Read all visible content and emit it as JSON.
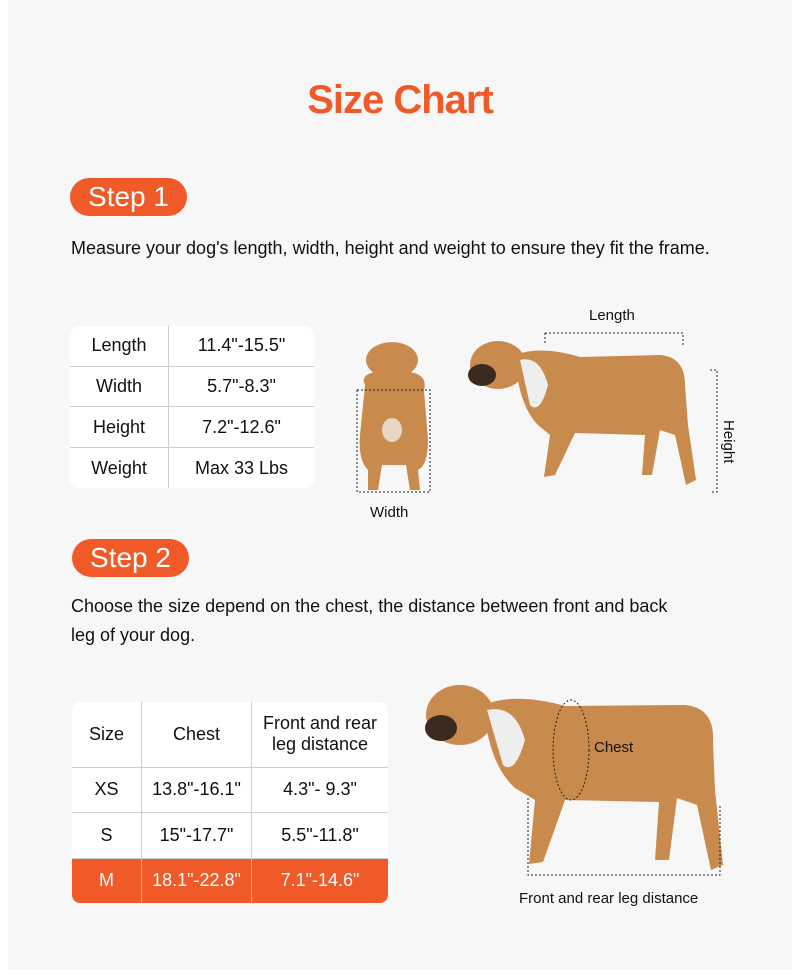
{
  "title": "Size Chart",
  "colors": {
    "accent": "#f05a28",
    "background": "#f7f7f7",
    "dog": "#c98a4e"
  },
  "step1": {
    "badge": "Step 1",
    "instruction": "Measure your dog's length, width, height and weight to ensure they fit the frame.",
    "table": [
      [
        "Length",
        "11.4\"-15.5\""
      ],
      [
        "Width",
        "5.7\"-8.3\""
      ],
      [
        "Height",
        "7.2\"-12.6\""
      ],
      [
        "Weight",
        "Max 33 Lbs"
      ]
    ],
    "labels": {
      "length": "Length",
      "width": "Width",
      "height": "Height"
    }
  },
  "step2": {
    "badge": "Step 2",
    "instruction_line1": "Choose the size depend on the chest, the distance between front and back",
    "instruction_line2": "leg of your dog.",
    "headers": [
      "Size",
      "Chest",
      "Front and rear",
      "leg distance"
    ],
    "rows": [
      [
        "XS",
        "13.8\"-16.1\"",
        "4.3\"- 9.3\""
      ],
      [
        "S",
        "15\"-17.7\"",
        "5.5\"-11.8\""
      ],
      [
        "M",
        "18.1\"-22.8\"",
        "7.1\"-14.6\""
      ]
    ],
    "highlighted_size": "M",
    "labels": {
      "chest": "Chest",
      "leg_distance": "Front and rear leg distance"
    }
  }
}
